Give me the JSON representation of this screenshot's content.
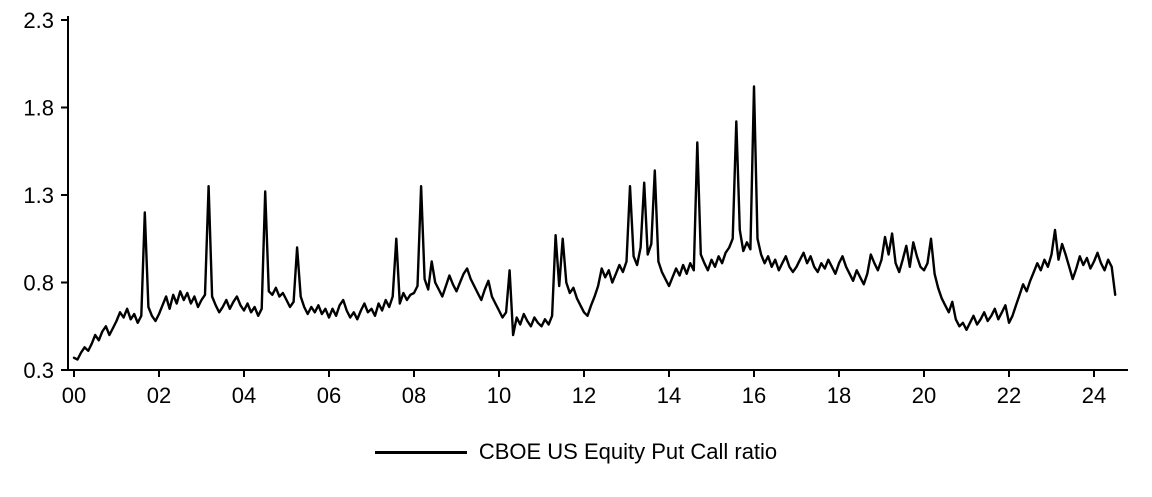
{
  "chart_data": {
    "type": "line",
    "title": "",
    "xlabel": "",
    "ylabel": "",
    "grid": false,
    "legend_position": "bottom-center",
    "background_color": "#ffffff",
    "axis_color": "#000000",
    "ylim": [
      0.3,
      2.3
    ],
    "xlim": [
      2000,
      2024.75
    ],
    "y_ticks": [
      0.3,
      0.8,
      1.3,
      1.8,
      2.3
    ],
    "y_tick_labels": [
      "0.3",
      "0.8",
      "1.3",
      "1.8",
      "2.3"
    ],
    "x_ticks": [
      2000,
      2002,
      2004,
      2006,
      2008,
      2010,
      2012,
      2014,
      2016,
      2018,
      2020,
      2022,
      2024
    ],
    "x_tick_labels": [
      "00",
      "02",
      "04",
      "06",
      "08",
      "10",
      "12",
      "14",
      "16",
      "18",
      "20",
      "22",
      "24"
    ],
    "x_start": 2000.0,
    "x_step": 0.08333,
    "x_unit": "decimal-year-monthly",
    "series": [
      {
        "name": "CBOE US Equity Put Call ratio",
        "color": "#000000",
        "line_width": 2.4,
        "y": [
          0.37,
          0.36,
          0.4,
          0.43,
          0.41,
          0.45,
          0.5,
          0.47,
          0.52,
          0.55,
          0.5,
          0.54,
          0.58,
          0.63,
          0.6,
          0.65,
          0.59,
          0.62,
          0.57,
          0.61,
          1.2,
          0.66,
          0.61,
          0.58,
          0.62,
          0.67,
          0.72,
          0.65,
          0.73,
          0.68,
          0.75,
          0.7,
          0.74,
          0.68,
          0.72,
          0.66,
          0.7,
          0.73,
          1.35,
          0.72,
          0.67,
          0.63,
          0.66,
          0.7,
          0.65,
          0.69,
          0.72,
          0.67,
          0.64,
          0.68,
          0.63,
          0.66,
          0.61,
          0.65,
          1.32,
          0.75,
          0.73,
          0.77,
          0.72,
          0.74,
          0.7,
          0.66,
          0.69,
          1.0,
          0.72,
          0.66,
          0.62,
          0.66,
          0.63,
          0.67,
          0.62,
          0.65,
          0.6,
          0.65,
          0.61,
          0.67,
          0.7,
          0.64,
          0.6,
          0.63,
          0.59,
          0.64,
          0.68,
          0.63,
          0.65,
          0.61,
          0.68,
          0.64,
          0.7,
          0.66,
          0.72,
          1.05,
          0.68,
          0.74,
          0.7,
          0.73,
          0.74,
          0.78,
          1.35,
          0.82,
          0.76,
          0.92,
          0.8,
          0.76,
          0.72,
          0.78,
          0.84,
          0.79,
          0.75,
          0.8,
          0.85,
          0.88,
          0.82,
          0.78,
          0.74,
          0.7,
          0.76,
          0.81,
          0.72,
          0.68,
          0.64,
          0.6,
          0.63,
          0.87,
          0.5,
          0.6,
          0.56,
          0.62,
          0.58,
          0.55,
          0.6,
          0.57,
          0.55,
          0.59,
          0.56,
          0.61,
          1.07,
          0.78,
          1.05,
          0.8,
          0.74,
          0.77,
          0.71,
          0.67,
          0.63,
          0.61,
          0.67,
          0.72,
          0.78,
          0.88,
          0.83,
          0.87,
          0.8,
          0.85,
          0.9,
          0.86,
          0.92,
          1.35,
          0.95,
          0.9,
          1.0,
          1.37,
          0.96,
          1.02,
          1.44,
          0.92,
          0.86,
          0.82,
          0.78,
          0.83,
          0.88,
          0.84,
          0.9,
          0.85,
          0.91,
          0.87,
          1.6,
          0.96,
          0.91,
          0.87,
          0.93,
          0.89,
          0.95,
          0.91,
          0.97,
          1.0,
          1.05,
          1.72,
          1.1,
          0.98,
          1.03,
          0.99,
          1.92,
          1.05,
          0.96,
          0.91,
          0.95,
          0.89,
          0.93,
          0.87,
          0.91,
          0.95,
          0.89,
          0.86,
          0.89,
          0.93,
          0.97,
          0.91,
          0.95,
          0.89,
          0.86,
          0.91,
          0.88,
          0.93,
          0.89,
          0.85,
          0.91,
          0.95,
          0.89,
          0.85,
          0.81,
          0.87,
          0.83,
          0.79,
          0.85,
          0.96,
          0.91,
          0.87,
          0.93,
          1.06,
          0.96,
          1.08,
          0.91,
          0.86,
          0.93,
          1.01,
          0.89,
          1.03,
          0.95,
          0.89,
          0.87,
          0.91,
          1.05,
          0.85,
          0.77,
          0.71,
          0.67,
          0.63,
          0.69,
          0.59,
          0.55,
          0.57,
          0.53,
          0.57,
          0.61,
          0.56,
          0.59,
          0.63,
          0.58,
          0.61,
          0.65,
          0.59,
          0.63,
          0.67,
          0.57,
          0.61,
          0.67,
          0.73,
          0.79,
          0.75,
          0.81,
          0.86,
          0.91,
          0.87,
          0.93,
          0.89,
          0.96,
          1.1,
          0.93,
          1.02,
          0.96,
          0.89,
          0.82,
          0.88,
          0.95,
          0.9,
          0.94,
          0.88,
          0.92,
          0.97,
          0.91,
          0.87,
          0.93,
          0.89,
          0.73
        ]
      }
    ]
  }
}
